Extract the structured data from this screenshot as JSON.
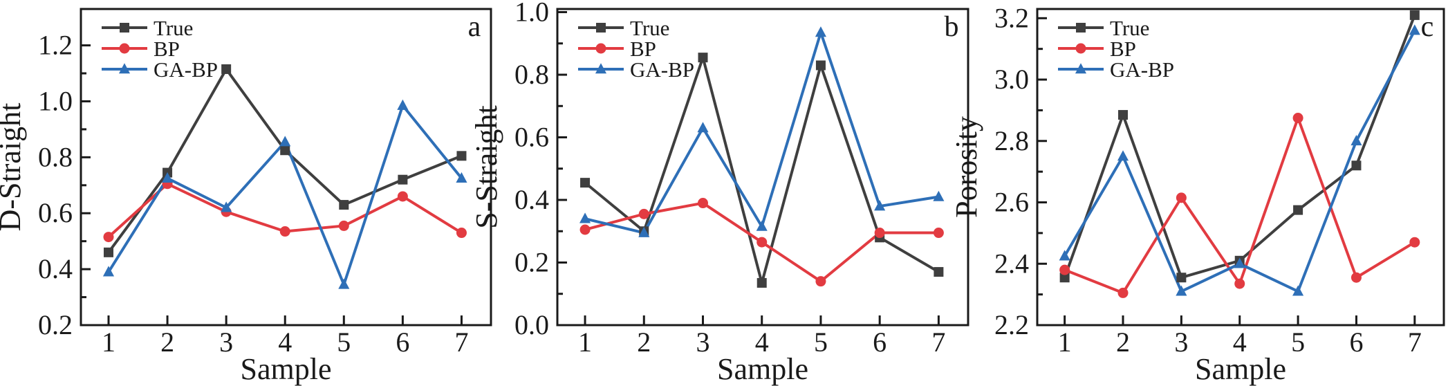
{
  "figure": {
    "background_color": "#ffffff",
    "axis_color": "#1a1a1a",
    "x_axis_label": "Sample",
    "x_tick_labels": [
      "1",
      "2",
      "3",
      "4",
      "5",
      "6",
      "7"
    ],
    "legend_entries": [
      "True",
      "BP",
      "GA-BP"
    ],
    "legend_position": "top-left",
    "panel_letters": [
      "a",
      "b",
      "c"
    ],
    "series_colors": {
      "True": "#3f3f3f",
      "BP": "#e23b41",
      "GA-BP": "#2e6fb7"
    }
  },
  "chart_data": [
    {
      "type": "line",
      "panel_label": "a",
      "title": "",
      "xlabel": "Sample",
      "ylabel": "D-Straight",
      "x": [
        1,
        2,
        3,
        4,
        5,
        6,
        7
      ],
      "xlim": [
        0.53,
        7.5
      ],
      "ylim": [
        0.2,
        1.33
      ],
      "yticks": [
        0.2,
        0.4,
        0.6,
        0.8,
        1.0,
        1.2
      ],
      "ytick_decimals": 1,
      "grid": false,
      "legend_position": "top-left",
      "series": [
        {
          "name": "True",
          "color": "#3f3f3f",
          "marker": "square",
          "values": [
            0.46,
            0.745,
            1.115,
            0.825,
            0.63,
            0.72,
            0.805
          ]
        },
        {
          "name": "BP",
          "color": "#e23b41",
          "marker": "circle",
          "values": [
            0.515,
            0.705,
            0.605,
            0.535,
            0.555,
            0.66,
            0.53
          ]
        },
        {
          "name": "GA-BP",
          "color": "#2e6fb7",
          "marker": "triangle",
          "values": [
            0.39,
            0.725,
            0.62,
            0.855,
            0.345,
            0.985,
            0.725
          ]
        }
      ]
    },
    {
      "type": "line",
      "panel_label": "b",
      "title": "",
      "xlabel": "Sample",
      "ylabel": "S-Straight",
      "x": [
        1,
        2,
        3,
        4,
        5,
        6,
        7
      ],
      "xlim": [
        0.53,
        7.5
      ],
      "ylim": [
        0.0,
        1.01
      ],
      "yticks": [
        0.0,
        0.2,
        0.4,
        0.6,
        0.8,
        1.0
      ],
      "ytick_decimals": 1,
      "grid": false,
      "legend_position": "top-left",
      "series": [
        {
          "name": "True",
          "color": "#3f3f3f",
          "marker": "square",
          "values": [
            0.455,
            0.3,
            0.855,
            0.135,
            0.83,
            0.28,
            0.17
          ]
        },
        {
          "name": "BP",
          "color": "#e23b41",
          "marker": "circle",
          "values": [
            0.305,
            0.355,
            0.39,
            0.265,
            0.14,
            0.295,
            0.295
          ]
        },
        {
          "name": "GA-BP",
          "color": "#2e6fb7",
          "marker": "triangle",
          "values": [
            0.34,
            0.295,
            0.63,
            0.315,
            0.935,
            0.38,
            0.41
          ]
        }
      ]
    },
    {
      "type": "line",
      "panel_label": "c",
      "title": "",
      "xlabel": "Sample",
      "ylabel": "Porosity",
      "x": [
        1,
        2,
        3,
        4,
        5,
        6,
        7
      ],
      "xlim": [
        0.53,
        7.5
      ],
      "ylim": [
        2.2,
        3.23
      ],
      "yticks": [
        2.2,
        2.4,
        2.6,
        2.8,
        3.0,
        3.2
      ],
      "ytick_decimals": 1,
      "grid": false,
      "legend_position": "top-left",
      "series": [
        {
          "name": "True",
          "color": "#3f3f3f",
          "marker": "square",
          "values": [
            2.355,
            2.885,
            2.355,
            2.41,
            2.575,
            2.72,
            3.21
          ]
        },
        {
          "name": "BP",
          "color": "#e23b41",
          "marker": "circle",
          "values": [
            2.38,
            2.305,
            2.615,
            2.335,
            2.875,
            2.355,
            2.47
          ]
        },
        {
          "name": "GA-BP",
          "color": "#2e6fb7",
          "marker": "triangle",
          "values": [
            2.425,
            2.75,
            2.31,
            2.4,
            2.31,
            2.8,
            3.16
          ]
        }
      ]
    }
  ]
}
